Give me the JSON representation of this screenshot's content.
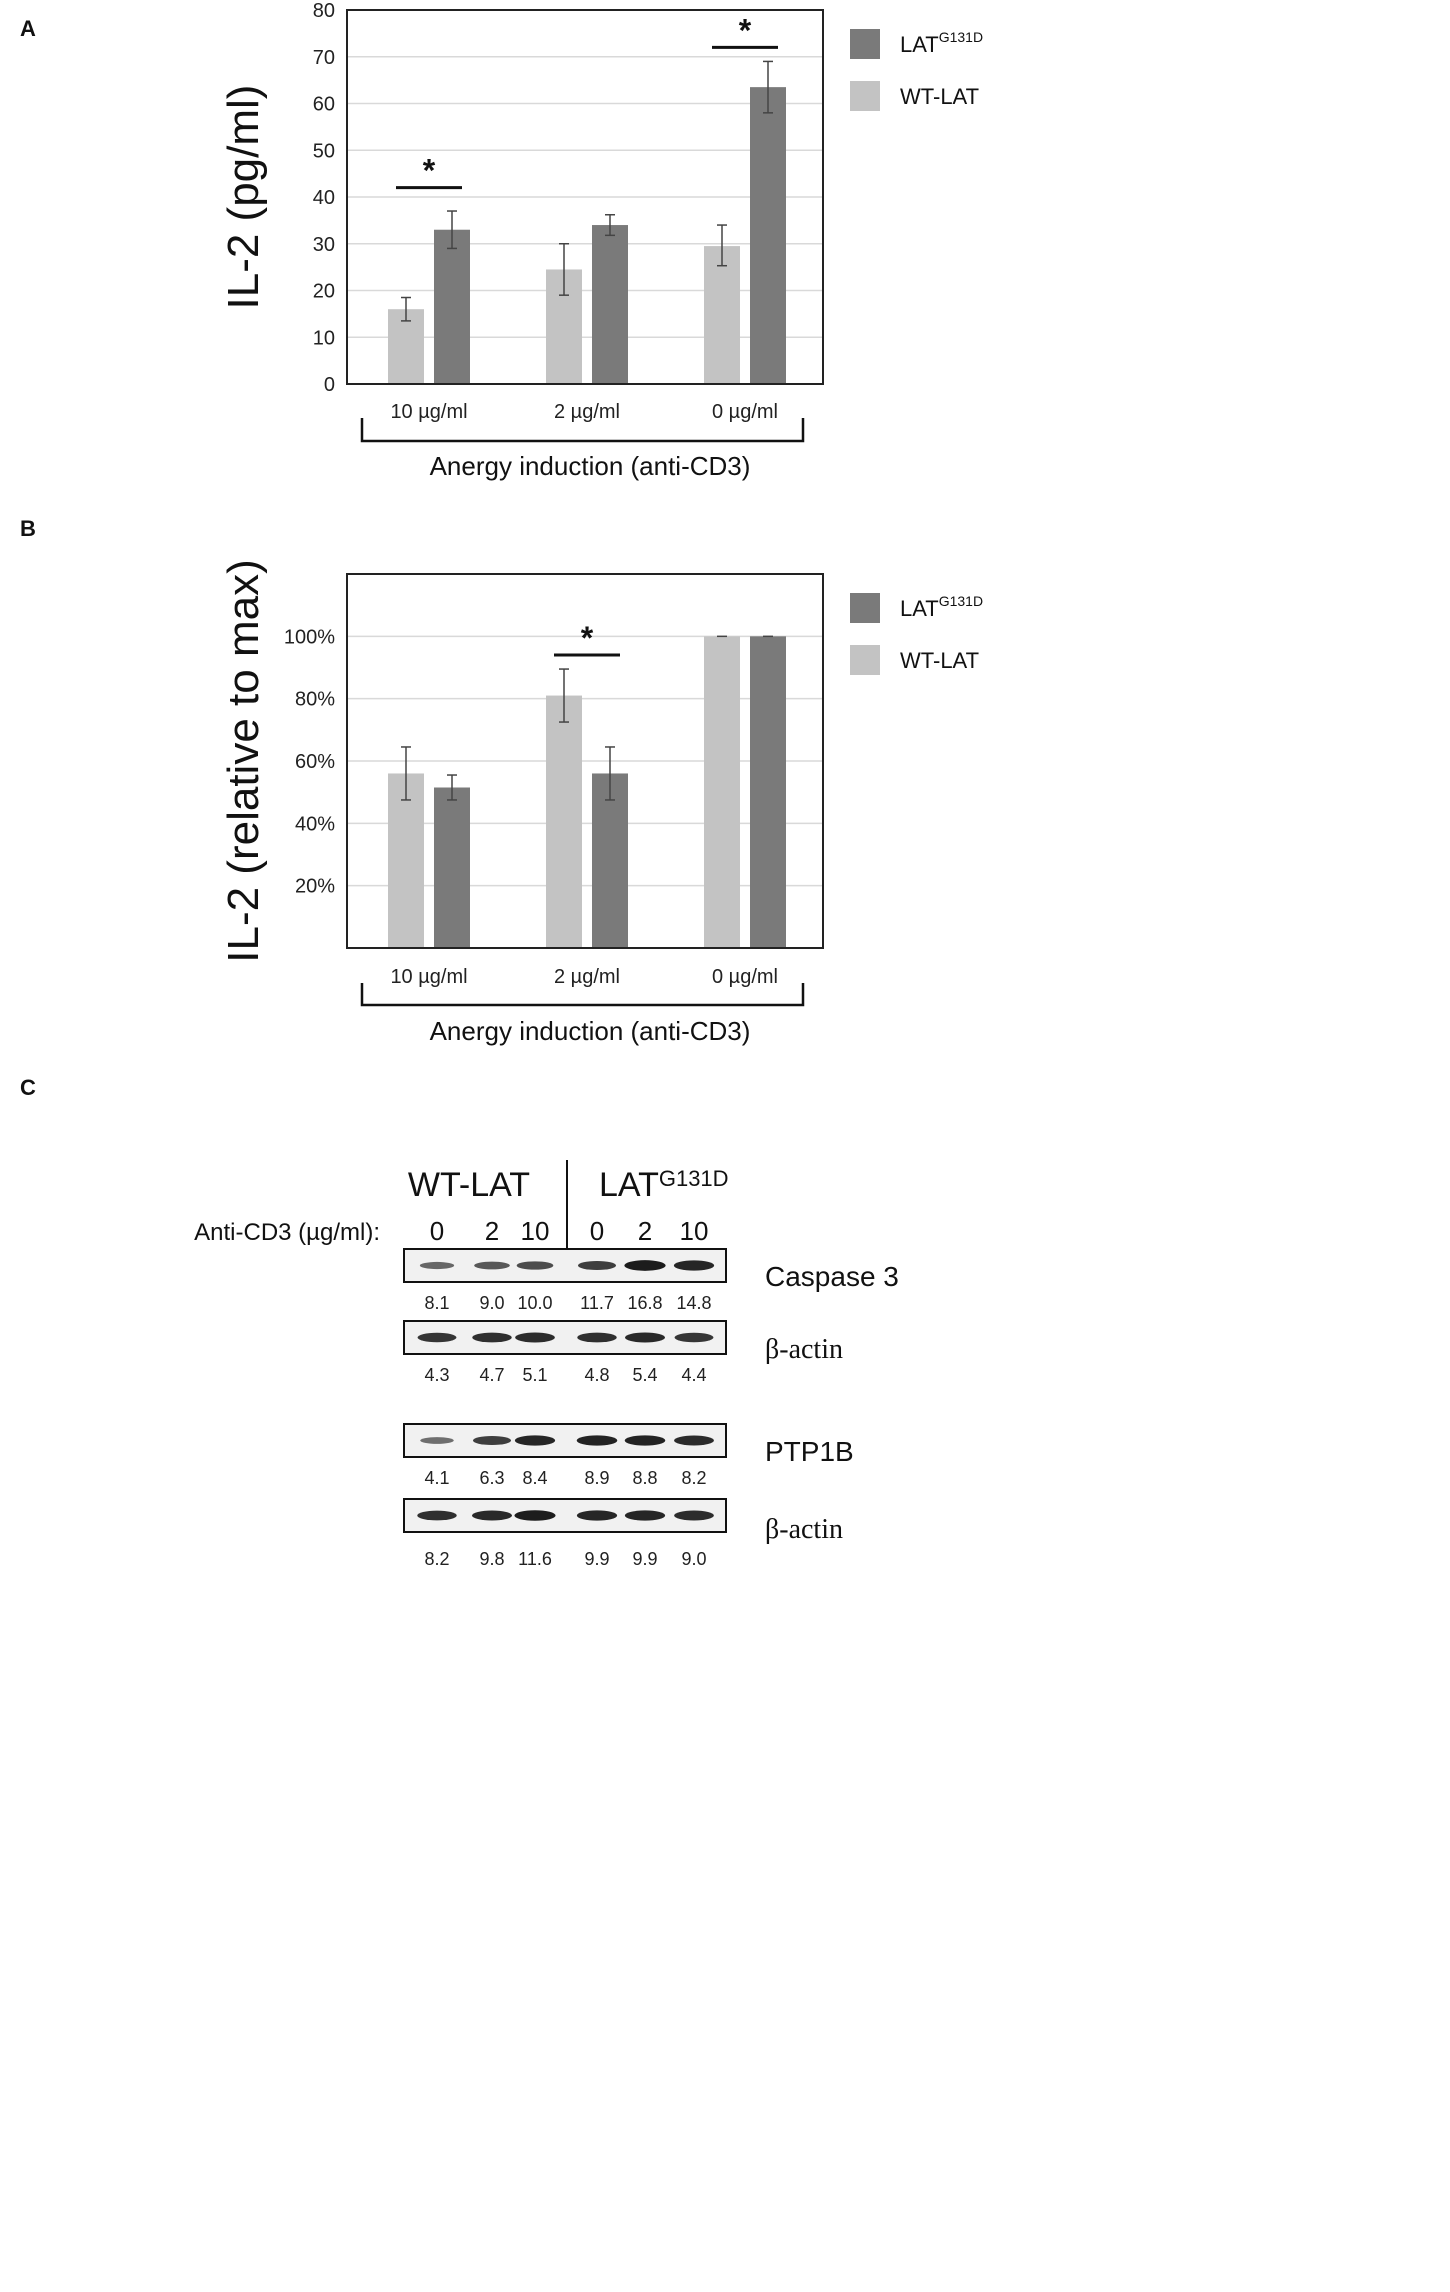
{
  "chart_data": [
    {
      "panel": "A",
      "type": "bar",
      "ylabel": "IL-2 (pg/ml)",
      "xlabel": "Anergy induction (anti-CD3)",
      "ylim": [
        0,
        80
      ],
      "yticks": [
        0,
        10,
        20,
        30,
        40,
        50,
        60,
        70,
        80
      ],
      "ytick_labels": [
        "0",
        "10",
        "20",
        "30",
        "40",
        "50",
        "60",
        "70",
        "80"
      ],
      "grid": true,
      "categories": [
        "10 µg/ml",
        "2 µg/ml",
        "0 µg/ml"
      ],
      "series": [
        {
          "name": "WT-LAT",
          "color": "#c3c3c3",
          "values": [
            16,
            24.5,
            29.5
          ],
          "err_low": [
            13.5,
            19,
            25.3
          ],
          "err_high": [
            18.5,
            30,
            34
          ]
        },
        {
          "name": "LAT",
          "sup": "G131D",
          "color": "#7a7a7a",
          "values": [
            33,
            34,
            63.5
          ],
          "err_low": [
            29,
            31.8,
            58
          ],
          "err_high": [
            37,
            36.2,
            69
          ]
        }
      ],
      "legend": [
        {
          "name": "LAT",
          "sup": "G131D",
          "color": "#7a7a7a"
        },
        {
          "name": "WT-LAT",
          "color": "#c3c3c3"
        }
      ],
      "significance": [
        {
          "category_index": 0,
          "y": 42,
          "label": "*"
        },
        {
          "category_index": 2,
          "y": 72,
          "label": "*"
        }
      ]
    },
    {
      "panel": "B",
      "type": "bar",
      "ylabel": "IL-2 (relative to max)",
      "xlabel": "Anergy induction (anti-CD3)",
      "ylim": [
        0,
        120
      ],
      "yticks": [
        20,
        40,
        60,
        80,
        100
      ],
      "ytick_labels": [
        "20%",
        "40%",
        "60%",
        "80%",
        "100%"
      ],
      "grid": true,
      "categories": [
        "10 µg/ml",
        "2 µg/ml",
        "0 µg/ml"
      ],
      "series": [
        {
          "name": "WT-LAT",
          "color": "#c3c3c3",
          "values": [
            56,
            81,
            100
          ],
          "err_low": [
            47.5,
            72.5,
            100
          ],
          "err_high": [
            64.5,
            89.5,
            100
          ]
        },
        {
          "name": "LAT",
          "sup": "G131D",
          "color": "#7a7a7a",
          "values": [
            51.5,
            56,
            100
          ],
          "err_low": [
            47.5,
            47.5,
            100
          ],
          "err_high": [
            55.5,
            64.5,
            100
          ]
        }
      ],
      "legend": [
        {
          "name": "LAT",
          "sup": "G131D",
          "color": "#7a7a7a"
        },
        {
          "name": "WT-LAT",
          "color": "#c3c3c3"
        }
      ],
      "significance": [
        {
          "category_index": 1,
          "y": 94,
          "label": "*"
        }
      ]
    }
  ],
  "panel_labels": {
    "a": "A",
    "b": "B",
    "c": "C"
  },
  "western": {
    "group_wt": "WT-LAT",
    "group_mut": "LAT",
    "group_mut_sup": "G131D",
    "dose_label": "Anti-CD3 (µg/ml):",
    "doses": [
      "0",
      "2",
      "10",
      "0",
      "2",
      "10"
    ],
    "blots": [
      {
        "label": "Caspase 3",
        "quant": [
          "8.1",
          "9.0",
          "10.0",
          "11.7",
          "16.8",
          "14.8"
        ],
        "intensity": [
          0.45,
          0.55,
          0.62,
          0.72,
          0.95,
          0.88
        ]
      },
      {
        "label": "β-actin",
        "quant": [
          "4.3",
          "4.7",
          "5.1",
          "4.8",
          "5.4",
          "4.4"
        ],
        "intensity": [
          0.78,
          0.82,
          0.84,
          0.82,
          0.86,
          0.78
        ]
      },
      {
        "label": "PTP1B",
        "quant": [
          "4.1",
          "6.3",
          "8.4",
          "8.9",
          "8.8",
          "8.2"
        ],
        "intensity": [
          0.4,
          0.72,
          0.88,
          0.9,
          0.9,
          0.85
        ]
      },
      {
        "label": "β-actin",
        "quant": [
          "8.2",
          "9.8",
          "11.6",
          "9.9",
          "9.9",
          "9.0"
        ],
        "intensity": [
          0.82,
          0.86,
          0.94,
          0.88,
          0.88,
          0.84
        ]
      }
    ]
  }
}
